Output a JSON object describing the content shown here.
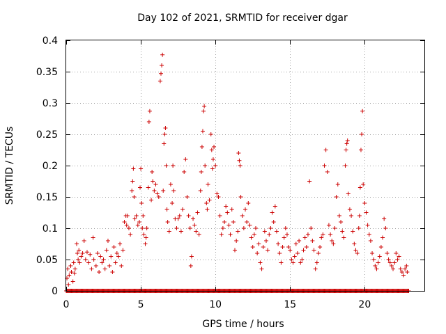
{
  "colors": {
    "series": "#cc0000",
    "grid": "#a0a0a0",
    "frame": "#000000"
  },
  "chart_data": {
    "type": "scatter",
    "title": "Day 102 of 2021, SRMTID for receiver dgar",
    "xlabel": "GPS time / hours",
    "ylabel": "SRMTID / TECUs",
    "xlim": [
      0,
      24
    ],
    "ylim": [
      0,
      0.4
    ],
    "grid": true,
    "xticks": [
      0,
      5,
      10,
      15,
      20
    ],
    "xtick_labels": [
      "0",
      "5",
      "10",
      "15",
      "20"
    ],
    "yticks": [
      0,
      0.05,
      0.1,
      0.15,
      0.2,
      0.25,
      0.3,
      0.35,
      0.4
    ],
    "ytick_labels": [
      "0",
      "0.05",
      "0.1",
      "0.15",
      "0.2",
      "0.25",
      "0.3",
      "0.35",
      "0.4"
    ],
    "marker": "plus",
    "series": [
      {
        "name": "SRMTID",
        "points": [
          [
            0.05,
            0.02
          ],
          [
            0.1,
            0.035
          ],
          [
            0.15,
            0.01
          ],
          [
            0.2,
            0.025
          ],
          [
            0.3,
            0.04
          ],
          [
            0.35,
            0.03
          ],
          [
            0.45,
            0.015
          ],
          [
            0.5,
            0.045
          ],
          [
            0.55,
            0.028
          ],
          [
            0.6,
            0.035
          ],
          [
            0.7,
            0.075
          ],
          [
            0.75,
            0.06
          ],
          [
            0.8,
            0.05
          ],
          [
            0.85,
            0.065
          ],
          [
            0.9,
            0.045
          ],
          [
            1.0,
            0.055
          ],
          [
            1.1,
            0.06
          ],
          [
            1.2,
            0.08
          ],
          [
            1.3,
            0.05
          ],
          [
            1.4,
            0.062
          ],
          [
            1.5,
            0.045
          ],
          [
            1.6,
            0.058
          ],
          [
            1.7,
            0.035
          ],
          [
            1.8,
            0.085
          ],
          [
            1.85,
            0.05
          ],
          [
            2.0,
            0.04
          ],
          [
            2.1,
            0.06
          ],
          [
            2.2,
            0.03
          ],
          [
            2.3,
            0.055
          ],
          [
            2.4,
            0.045
          ],
          [
            2.5,
            0.05
          ],
          [
            2.6,
            0.035
          ],
          [
            2.7,
            0.065
          ],
          [
            2.8,
            0.08
          ],
          [
            2.9,
            0.04
          ],
          [
            3.0,
            0.055
          ],
          [
            3.1,
            0.03
          ],
          [
            3.2,
            0.07
          ],
          [
            3.3,
            0.045
          ],
          [
            3.4,
            0.06
          ],
          [
            3.5,
            0.055
          ],
          [
            3.6,
            0.075
          ],
          [
            3.7,
            0.04
          ],
          [
            3.8,
            0.065
          ],
          [
            3.9,
            0.11
          ],
          [
            4.0,
            0.12
          ],
          [
            4.05,
            0.105
          ],
          [
            4.1,
            0.12
          ],
          [
            4.2,
            0.1
          ],
          [
            4.3,
            0.09
          ],
          [
            4.4,
            0.16
          ],
          [
            4.45,
            0.175
          ],
          [
            4.5,
            0.195
          ],
          [
            4.55,
            0.15
          ],
          [
            4.6,
            0.115
          ],
          [
            4.7,
            0.12
          ],
          [
            4.8,
            0.105
          ],
          [
            4.9,
            0.11
          ],
          [
            4.95,
            0.165
          ],
          [
            5.0,
            0.195
          ],
          [
            5.05,
            0.14
          ],
          [
            5.1,
            0.1
          ],
          [
            5.15,
            0.12
          ],
          [
            5.2,
            0.09
          ],
          [
            5.3,
            0.075
          ],
          [
            5.35,
            0.085
          ],
          [
            5.4,
            0.1
          ],
          [
            5.5,
            0.165
          ],
          [
            5.55,
            0.27
          ],
          [
            5.6,
            0.287
          ],
          [
            5.7,
            0.145
          ],
          [
            5.75,
            0.19
          ],
          [
            5.8,
            0.175
          ],
          [
            5.9,
            0.16
          ],
          [
            6.0,
            0.17
          ],
          [
            6.1,
            0.155
          ],
          [
            6.2,
            0.15
          ],
          [
            6.3,
            0.335
          ],
          [
            6.35,
            0.347
          ],
          [
            6.4,
            0.36
          ],
          [
            6.45,
            0.377
          ],
          [
            6.5,
            0.16
          ],
          [
            6.55,
            0.235
          ],
          [
            6.6,
            0.25
          ],
          [
            6.65,
            0.26
          ],
          [
            6.7,
            0.2
          ],
          [
            6.75,
            0.13
          ],
          [
            6.8,
            0.11
          ],
          [
            6.9,
            0.095
          ],
          [
            7.0,
            0.17
          ],
          [
            7.1,
            0.14
          ],
          [
            7.15,
            0.2
          ],
          [
            7.2,
            0.16
          ],
          [
            7.3,
            0.115
          ],
          [
            7.4,
            0.1
          ],
          [
            7.5,
            0.115
          ],
          [
            7.6,
            0.12
          ],
          [
            7.7,
            0.095
          ],
          [
            7.8,
            0.13
          ],
          [
            7.9,
            0.19
          ],
          [
            8.0,
            0.21
          ],
          [
            8.1,
            0.15
          ],
          [
            8.2,
            0.12
          ],
          [
            8.3,
            0.1
          ],
          [
            8.35,
            0.04
          ],
          [
            8.4,
            0.055
          ],
          [
            8.5,
            0.115
          ],
          [
            8.6,
            0.105
          ],
          [
            8.7,
            0.095
          ],
          [
            8.8,
            0.125
          ],
          [
            8.9,
            0.09
          ],
          [
            9.0,
            0.16
          ],
          [
            9.05,
            0.19
          ],
          [
            9.1,
            0.23
          ],
          [
            9.15,
            0.255
          ],
          [
            9.2,
            0.287
          ],
          [
            9.25,
            0.295
          ],
          [
            9.3,
            0.2
          ],
          [
            9.4,
            0.14
          ],
          [
            9.45,
            0.13
          ],
          [
            9.5,
            0.17
          ],
          [
            9.6,
            0.145
          ],
          [
            9.7,
            0.25
          ],
          [
            9.75,
            0.225
          ],
          [
            9.8,
            0.195
          ],
          [
            9.85,
            0.21
          ],
          [
            9.9,
            0.23
          ],
          [
            10.0,
            0.2
          ],
          [
            10.1,
            0.155
          ],
          [
            10.2,
            0.15
          ],
          [
            10.3,
            0.12
          ],
          [
            10.4,
            0.09
          ],
          [
            10.5,
            0.1
          ],
          [
            10.6,
            0.11
          ],
          [
            10.7,
            0.135
          ],
          [
            10.8,
            0.125
          ],
          [
            10.9,
            0.105
          ],
          [
            11.0,
            0.09
          ],
          [
            11.1,
            0.13
          ],
          [
            11.2,
            0.11
          ],
          [
            11.3,
            0.065
          ],
          [
            11.4,
            0.08
          ],
          [
            11.5,
            0.095
          ],
          [
            11.55,
            0.22
          ],
          [
            11.6,
            0.208
          ],
          [
            11.65,
            0.2
          ],
          [
            11.7,
            0.15
          ],
          [
            11.8,
            0.12
          ],
          [
            11.9,
            0.1
          ],
          [
            12.0,
            0.13
          ],
          [
            12.1,
            0.11
          ],
          [
            12.2,
            0.14
          ],
          [
            12.3,
            0.105
          ],
          [
            12.4,
            0.085
          ],
          [
            12.5,
            0.07
          ],
          [
            12.6,
            0.09
          ],
          [
            12.7,
            0.1
          ],
          [
            12.8,
            0.06
          ],
          [
            12.9,
            0.075
          ],
          [
            13.0,
            0.045
          ],
          [
            13.1,
            0.035
          ],
          [
            13.2,
            0.07
          ],
          [
            13.3,
            0.095
          ],
          [
            13.4,
            0.08
          ],
          [
            13.5,
            0.065
          ],
          [
            13.6,
            0.09
          ],
          [
            13.7,
            0.1
          ],
          [
            13.8,
            0.125
          ],
          [
            13.9,
            0.11
          ],
          [
            14.0,
            0.135
          ],
          [
            14.1,
            0.095
          ],
          [
            14.2,
            0.075
          ],
          [
            14.3,
            0.06
          ],
          [
            14.4,
            0.045
          ],
          [
            14.5,
            0.07
          ],
          [
            14.6,
            0.085
          ],
          [
            14.7,
            0.1
          ],
          [
            14.8,
            0.09
          ],
          [
            14.9,
            0.07
          ],
          [
            15.0,
            0.065
          ],
          [
            15.1,
            0.05
          ],
          [
            15.2,
            0.045
          ],
          [
            15.3,
            0.055
          ],
          [
            15.4,
            0.075
          ],
          [
            15.5,
            0.06
          ],
          [
            15.6,
            0.08
          ],
          [
            15.7,
            0.045
          ],
          [
            15.8,
            0.05
          ],
          [
            15.9,
            0.065
          ],
          [
            16.0,
            0.085
          ],
          [
            16.1,
            0.07
          ],
          [
            16.2,
            0.09
          ],
          [
            16.3,
            0.175
          ],
          [
            16.4,
            0.1
          ],
          [
            16.5,
            0.08
          ],
          [
            16.6,
            0.065
          ],
          [
            16.7,
            0.035
          ],
          [
            16.8,
            0.045
          ],
          [
            16.9,
            0.06
          ],
          [
            17.0,
            0.07
          ],
          [
            17.1,
            0.085
          ],
          [
            17.2,
            0.09
          ],
          [
            17.3,
            0.2
          ],
          [
            17.4,
            0.225
          ],
          [
            17.5,
            0.19
          ],
          [
            17.6,
            0.105
          ],
          [
            17.7,
            0.09
          ],
          [
            17.8,
            0.08
          ],
          [
            17.9,
            0.075
          ],
          [
            18.0,
            0.1
          ],
          [
            18.1,
            0.15
          ],
          [
            18.2,
            0.17
          ],
          [
            18.3,
            0.12
          ],
          [
            18.4,
            0.11
          ],
          [
            18.5,
            0.095
          ],
          [
            18.6,
            0.085
          ],
          [
            18.7,
            0.2
          ],
          [
            18.75,
            0.225
          ],
          [
            18.8,
            0.235
          ],
          [
            18.85,
            0.24
          ],
          [
            18.9,
            0.155
          ],
          [
            19.0,
            0.13
          ],
          [
            19.1,
            0.12
          ],
          [
            19.2,
            0.095
          ],
          [
            19.3,
            0.075
          ],
          [
            19.4,
            0.065
          ],
          [
            19.5,
            0.06
          ],
          [
            19.6,
            0.1
          ],
          [
            19.65,
            0.12
          ],
          [
            19.7,
            0.165
          ],
          [
            19.75,
            0.225
          ],
          [
            19.8,
            0.25
          ],
          [
            19.85,
            0.287
          ],
          [
            19.9,
            0.17
          ],
          [
            20.0,
            0.14
          ],
          [
            20.1,
            0.125
          ],
          [
            20.2,
            0.105
          ],
          [
            20.3,
            0.09
          ],
          [
            20.4,
            0.08
          ],
          [
            20.5,
            0.06
          ],
          [
            20.6,
            0.05
          ],
          [
            20.7,
            0.04
          ],
          [
            20.8,
            0.035
          ],
          [
            20.9,
            0.045
          ],
          [
            21.0,
            0.055
          ],
          [
            21.1,
            0.07
          ],
          [
            21.2,
            0.085
          ],
          [
            21.3,
            0.115
          ],
          [
            21.4,
            0.1
          ],
          [
            21.5,
            0.06
          ],
          [
            21.6,
            0.05
          ],
          [
            21.7,
            0.045
          ],
          [
            21.8,
            0.04
          ],
          [
            21.9,
            0.035
          ],
          [
            22.0,
            0.045
          ],
          [
            22.1,
            0.06
          ],
          [
            22.2,
            0.05
          ],
          [
            22.3,
            0.055
          ],
          [
            22.4,
            0.035
          ],
          [
            22.5,
            0.03
          ],
          [
            22.6,
            0.025
          ],
          [
            22.7,
            0.035
          ],
          [
            22.8,
            0.04
          ],
          [
            22.85,
            0.03
          ]
        ],
        "zero_band": {
          "x_start": 0,
          "x_end": 23,
          "y": 0
        }
      }
    ]
  }
}
